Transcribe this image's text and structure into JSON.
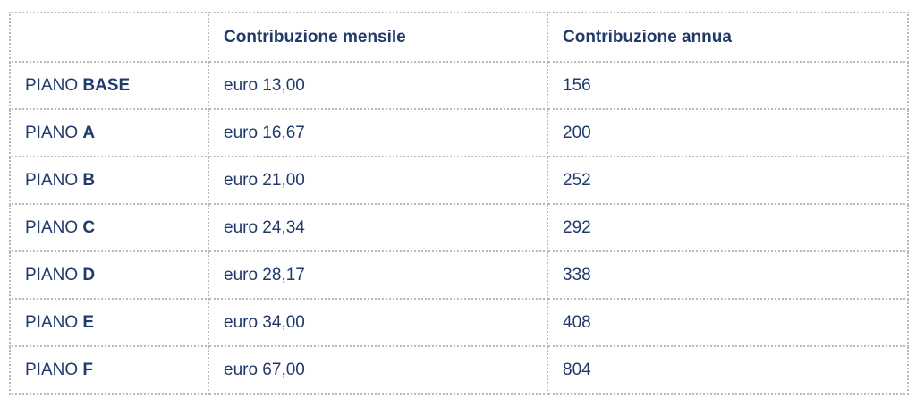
{
  "table": {
    "headers": [
      "",
      "Contribuzione mensile",
      "Contribuzione annua"
    ],
    "rows": [
      {
        "prefix": "PIANO",
        "letter": "BASE",
        "monthly": "euro 13,00",
        "annual": "156"
      },
      {
        "prefix": "PIANO",
        "letter": "A",
        "monthly": "euro 16,67",
        "annual": "200"
      },
      {
        "prefix": "PIANO",
        "letter": "B",
        "monthly": "euro 21,00",
        "annual": "252"
      },
      {
        "prefix": "PIANO",
        "letter": "C",
        "monthly": "euro 24,34",
        "annual": "292"
      },
      {
        "prefix": "PIANO",
        "letter": "D",
        "monthly": "euro 28,17",
        "annual": "338"
      },
      {
        "prefix": "PIANO",
        "letter": "E",
        "monthly": "euro 34,00",
        "annual": "408"
      },
      {
        "prefix": "PIANO",
        "letter": "F",
        "monthly": "euro 67,00",
        "annual": "804"
      }
    ]
  },
  "colors": {
    "text": "#1f3a6b",
    "border": "#b9b9b9",
    "background": "#ffffff"
  }
}
